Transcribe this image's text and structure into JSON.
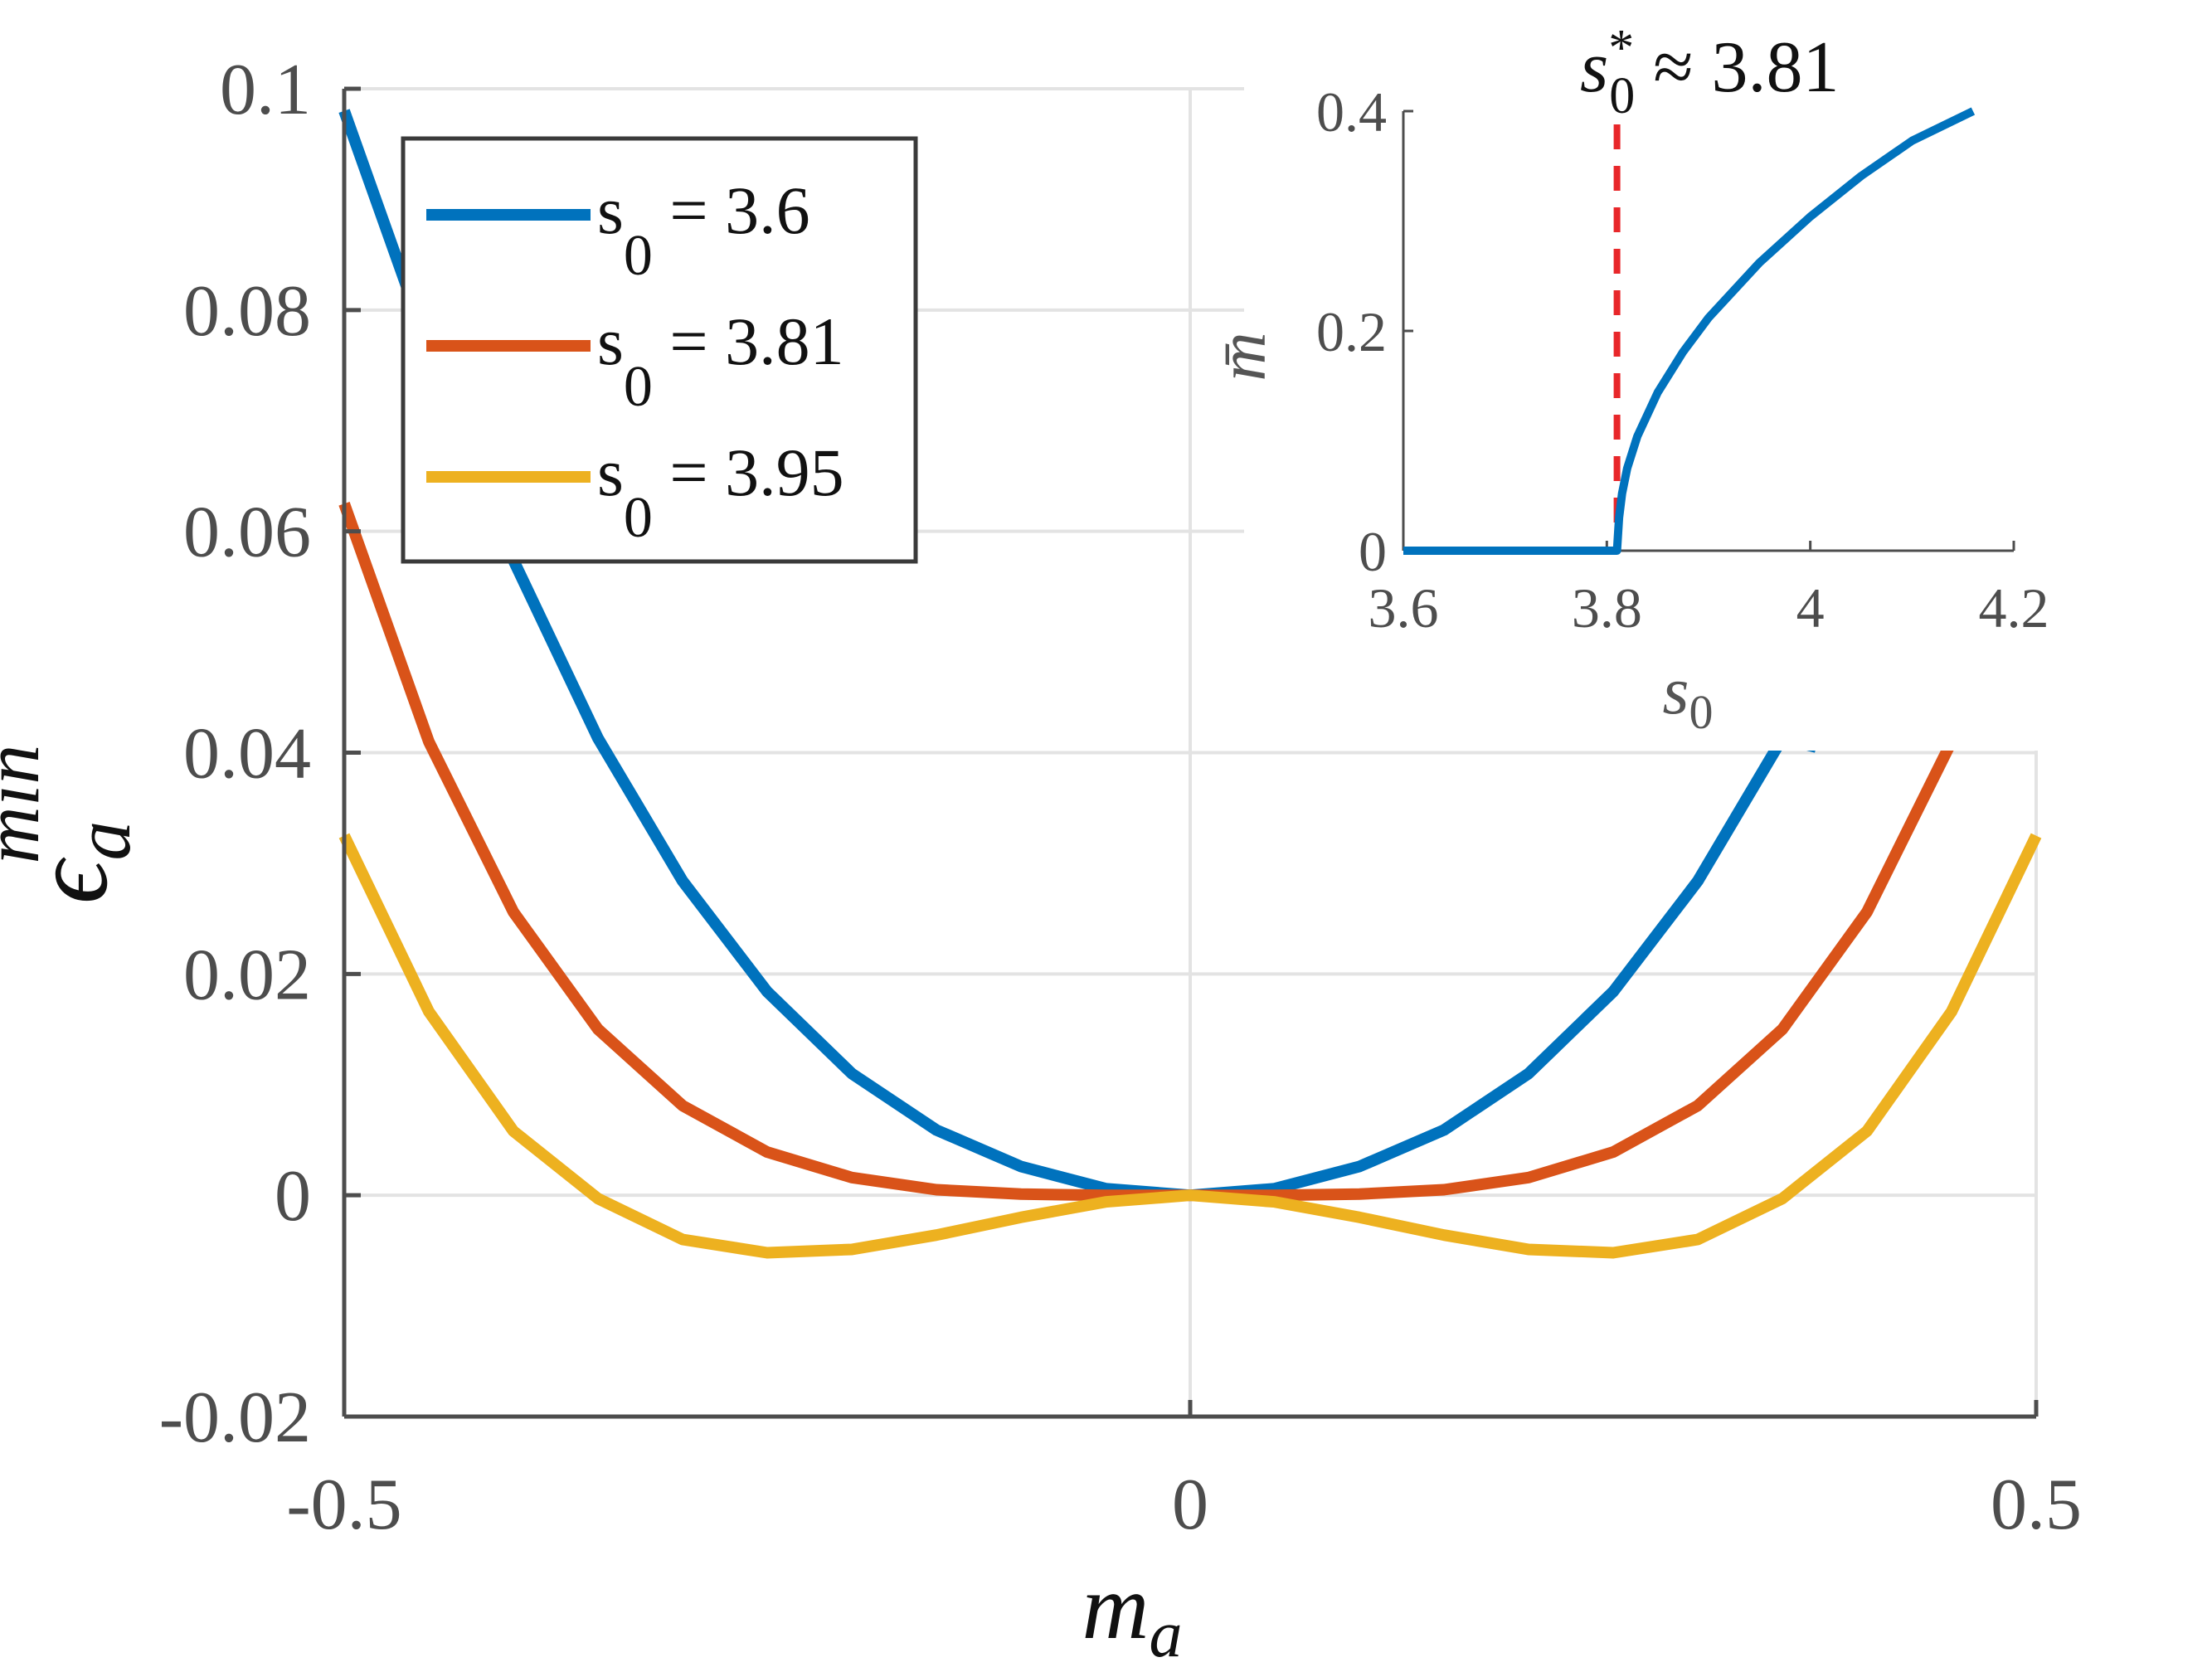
{
  "chart_data": [
    {
      "type": "line",
      "xlabel_base": "m",
      "xlabel_sub": "a",
      "ylabel_base": "ϵ",
      "ylabel_sub": "a",
      "ylabel_sup": "min",
      "xlim": [
        -0.5,
        0.5
      ],
      "ylim": [
        -0.02,
        0.1
      ],
      "xticks": [
        -0.5,
        0,
        0.5
      ],
      "xtick_labels": [
        "-0.5",
        "0",
        "0.5"
      ],
      "yticks": [
        -0.02,
        0,
        0.02,
        0.04,
        0.06,
        0.08,
        0.1
      ],
      "ytick_labels": [
        "-0.02",
        "0",
        "0.02",
        "0.04",
        "0.06",
        "0.08",
        "0.1"
      ],
      "grid": true,
      "legend_position": "top-left",
      "series": [
        {
          "name_base": "s",
          "name_sub": "0",
          "name_value": " = 3.6",
          "color": "#0072BD",
          "x": [
            -0.5,
            -0.45,
            -0.4,
            -0.35,
            -0.3,
            -0.25,
            -0.2,
            -0.15,
            -0.1,
            -0.05,
            0,
            0.05,
            0.1,
            0.15,
            0.2,
            0.25,
            0.3,
            0.35,
            0.37
          ],
          "y": [
            0.098,
            0.0765,
            0.0574,
            0.0413,
            0.0284,
            0.0184,
            0.011,
            0.0059,
            0.0026,
            0.0006,
            0,
            0.0006,
            0.0026,
            0.0059,
            0.011,
            0.0184,
            0.0284,
            0.0413,
            0.0405
          ]
        },
        {
          "name_base": "s",
          "name_sub": "0",
          "name_value": " = 3.81",
          "color": "#D95319",
          "x": [
            -0.5,
            -0.45,
            -0.4,
            -0.35,
            -0.3,
            -0.25,
            -0.2,
            -0.15,
            -0.1,
            -0.05,
            0,
            0.05,
            0.1,
            0.15,
            0.2,
            0.25,
            0.3,
            0.35,
            0.4,
            0.45
          ],
          "y": [
            0.0625,
            0.041,
            0.0256,
            0.015,
            0.0081,
            0.0039,
            0.0016,
            0.0005,
            0.0001,
            0,
            0,
            0,
            0.0001,
            0.0005,
            0.0016,
            0.0039,
            0.0081,
            0.015,
            0.0256,
            0.041
          ]
        },
        {
          "name_base": "s",
          "name_sub": "0",
          "name_value": " = 3.95",
          "color": "#EDB120",
          "x": [
            -0.5,
            -0.45,
            -0.4,
            -0.35,
            -0.3,
            -0.25,
            -0.2,
            -0.15,
            -0.1,
            -0.05,
            0,
            0.05,
            0.1,
            0.15,
            0.2,
            0.25,
            0.3,
            0.35,
            0.4,
            0.45,
            0.5
          ],
          "y": [
            0.0325,
            0.0166,
            0.0058,
            -0.0003,
            -0.004,
            -0.0052,
            -0.0049,
            -0.0036,
            -0.002,
            -0.0006,
            0,
            -0.0006,
            -0.002,
            -0.0036,
            -0.0049,
            -0.0052,
            -0.004,
            -0.0003,
            0.0058,
            0.0166,
            0.0325
          ]
        }
      ]
    },
    {
      "type": "line",
      "xlabel_base": "s",
      "xlabel_sub": "0",
      "ylabel": "m̄",
      "xlim": [
        3.6,
        4.2
      ],
      "ylim": [
        0,
        0.4
      ],
      "xticks": [
        3.6,
        3.8,
        4,
        4.2
      ],
      "xtick_labels": [
        "3.6",
        "3.8",
        "4",
        "4.2"
      ],
      "yticks": [
        0,
        0.2,
        0.4
      ],
      "ytick_labels": [
        "0",
        "0.2",
        "0.4"
      ],
      "grid": false,
      "annotation": {
        "base": "s",
        "sub": "0",
        "sup": "*",
        "rest": " ≈ 3.81",
        "x": 3.81,
        "line_color": "#E8272A"
      },
      "series": [
        {
          "color": "#0072BD",
          "x": [
            3.6,
            3.81,
            3.812,
            3.815,
            3.82,
            3.83,
            3.85,
            3.875,
            3.9,
            3.95,
            4.0,
            4.05,
            4.1,
            4.16
          ],
          "y": [
            0,
            0,
            0.03,
            0.052,
            0.075,
            0.104,
            0.144,
            0.181,
            0.212,
            0.262,
            0.304,
            0.341,
            0.373,
            0.4
          ]
        }
      ]
    }
  ]
}
